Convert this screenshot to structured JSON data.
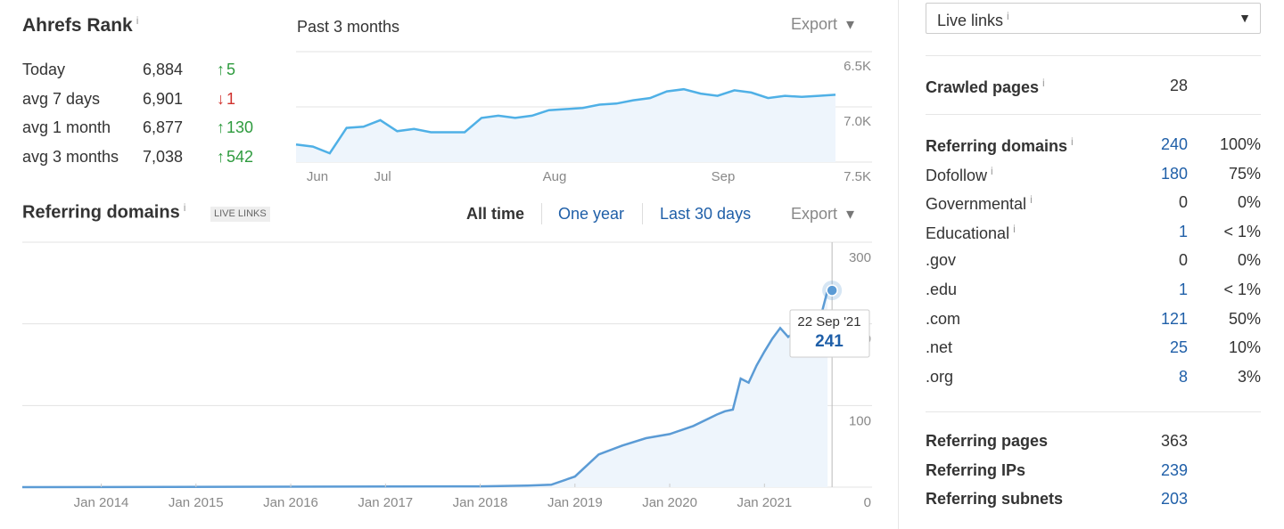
{
  "rank": {
    "title": "Ahrefs Rank",
    "rows": [
      {
        "label": "Today",
        "value": "6,884",
        "change": "5",
        "direction": "up"
      },
      {
        "label": "avg 7 days",
        "value": "6,901",
        "change": "1",
        "direction": "down"
      },
      {
        "label": "avg 1 month",
        "value": "6,877",
        "change": "130",
        "direction": "up"
      },
      {
        "label": "avg 3 months",
        "value": "7,038",
        "change": "542",
        "direction": "up"
      }
    ]
  },
  "chart_data": [
    {
      "type": "line",
      "subtitle": "Past 3 months",
      "export": "Export",
      "categories": [
        null,
        "Jun",
        null,
        null,
        null,
        "Jul",
        null,
        null,
        null,
        null,
        null,
        null,
        null,
        null,
        null,
        "Aug",
        null,
        null,
        null,
        null,
        null,
        null,
        null,
        null,
        null,
        "Sep",
        null,
        null,
        null,
        null,
        null,
        null,
        null
      ],
      "series": [
        {
          "color": "#4fb0e6",
          "values": [
            7340,
            7360,
            7420,
            7190,
            7180,
            7120,
            7220,
            7200,
            7230,
            7230,
            7230,
            7100,
            7080,
            7100,
            7080,
            7030,
            7020,
            7010,
            6980,
            6970,
            6940,
            6920,
            6860,
            6840,
            6880,
            6900,
            6850,
            6870,
            6920,
            6900,
            6910,
            6900,
            6890
          ]
        }
      ],
      "ylim": [
        7500,
        6500
      ],
      "yticks": [
        {
          "value": 6500,
          "label": "6.5K"
        },
        {
          "value": 7000,
          "label": "7.0K"
        },
        {
          "value": 7500,
          "label": "7.5K"
        }
      ],
      "grid": true
    },
    {
      "type": "line",
      "title": "Referring domains",
      "badge": "LIVE LINKS",
      "tabs": [
        "All time",
        "One year",
        "Last 30 days"
      ],
      "export": "Export",
      "x": [
        "Mar 2013",
        "Jan 2018",
        "Jul 2018",
        "Oct 2018",
        "Jan 2019",
        "Apr 2019",
        "Jul 2019",
        "Oct 2019",
        "Jan 2020",
        "Apr 2020",
        "Jul 2020",
        "Aug 2020",
        "Sep 2020",
        "Oct 2020",
        "Nov 2020",
        "Dec 2020",
        "Jan 2021",
        "Feb 2021",
        "Mar 2021",
        "Apr 2021",
        "May 2021",
        "Jun 2021",
        "Jul 2021",
        "Aug 2021",
        "Sep 2021"
      ],
      "series": [
        {
          "color": "#5b9bd5",
          "values": [
            0,
            1,
            2,
            3,
            13,
            40,
            51,
            60,
            65,
            75,
            89,
            93,
            95,
            133,
            128,
            149,
            166,
            182,
            195,
            184,
            191,
            184,
            191,
            204,
            241
          ]
        }
      ],
      "xlim": [
        "Mar 2013",
        "Oct 2021"
      ],
      "xticks": [
        "Jan 2014",
        "Jan 2015",
        "Jan 2016",
        "Jan 2017",
        "Jan 2018",
        "Jan 2019",
        "Jan 2020",
        "Jan 2021"
      ],
      "ylim": [
        0,
        300
      ],
      "yticks": [
        0,
        100,
        200,
        300
      ],
      "grid": true,
      "tooltip": {
        "date": "22 Sep '21",
        "value": 241
      }
    }
  ],
  "sidebar": {
    "dropdown": "Live links",
    "sections": [
      [
        {
          "label": "Crawled pages",
          "value": "28",
          "bold": true,
          "info": true
        }
      ],
      [
        {
          "label": "Referring domains",
          "value": "240",
          "percent": "100%",
          "bold": true,
          "info": true,
          "link": true
        },
        {
          "label": "Dofollow",
          "value": "180",
          "percent": "75%",
          "info": true,
          "link": true
        },
        {
          "label": "Governmental",
          "value": "0",
          "percent": "0%",
          "info": true
        },
        {
          "label": "Educational",
          "value": "1",
          "percent": "< 1%",
          "info": true,
          "link": true
        },
        {
          "label": ".gov",
          "value": "0",
          "percent": "0%"
        },
        {
          "label": ".edu",
          "value": "1",
          "percent": "< 1%",
          "link": true
        },
        {
          "label": ".com",
          "value": "121",
          "percent": "50%",
          "link": true
        },
        {
          "label": ".net",
          "value": "25",
          "percent": "10%",
          "link": true
        },
        {
          "label": ".org",
          "value": "8",
          "percent": "3%",
          "link": true
        }
      ],
      [
        {
          "label": "Referring pages",
          "value": "363",
          "bold": true
        },
        {
          "label": "Referring IPs",
          "value": "239",
          "bold": true,
          "link": true
        },
        {
          "label": "Referring subnets",
          "value": "203",
          "bold": true,
          "link": true
        }
      ]
    ]
  }
}
